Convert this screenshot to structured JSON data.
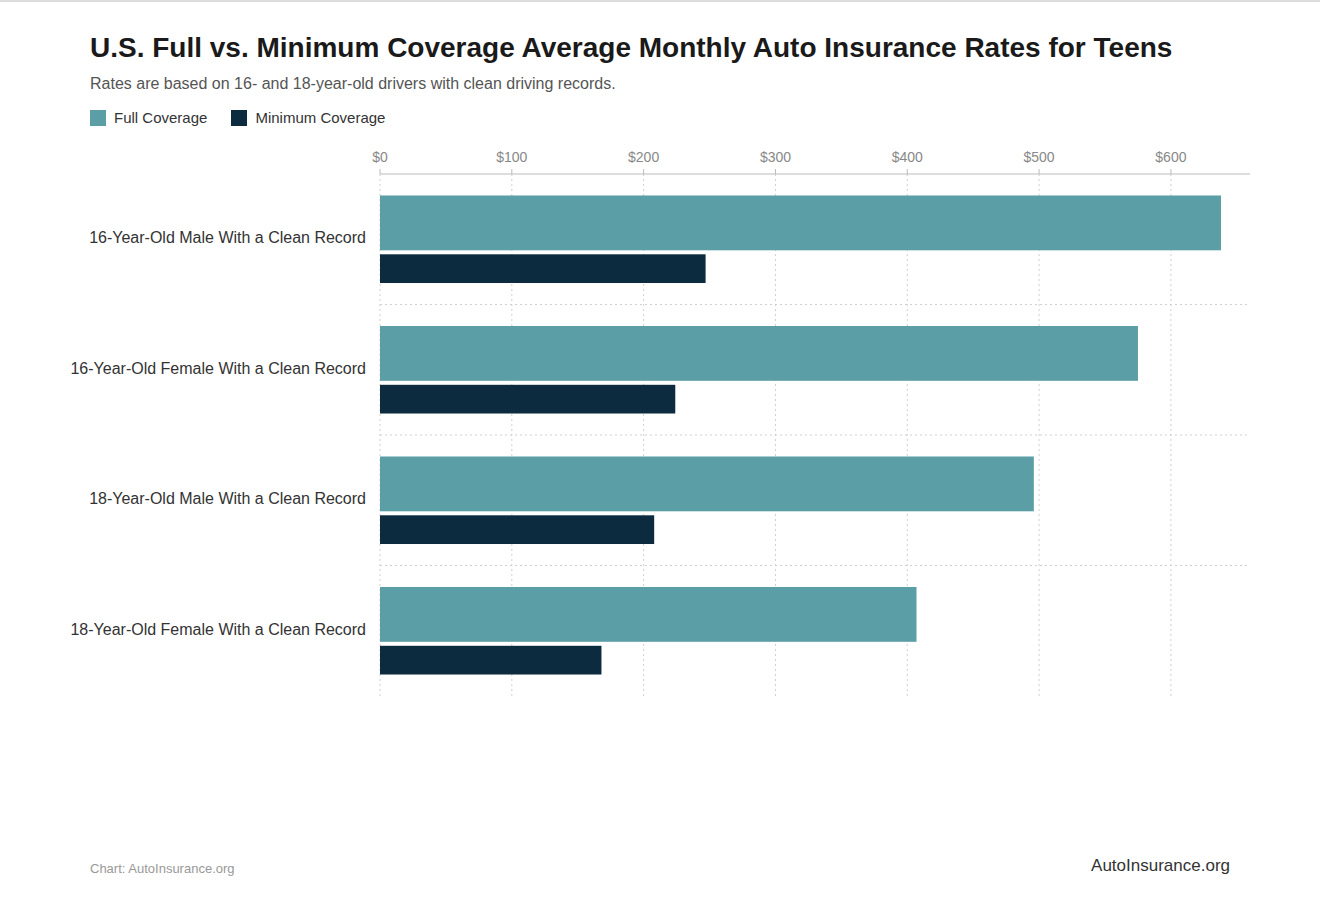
{
  "chart_data": {
    "type": "bar",
    "orientation": "horizontal",
    "title": "U.S. Full vs. Minimum Coverage Average Monthly Auto Insurance Rates for Teens",
    "subtitle": "Rates are based on 16- and 18-year-old drivers with clean driving records.",
    "categories": [
      "16-Year-Old Male With a Clean Record",
      "16-Year-Old Female With a Clean Record",
      "18-Year-Old Male With a Clean Record",
      "18-Year-Old Female With a Clean Record"
    ],
    "series": [
      {
        "name": "Full Coverage",
        "color": "#5B9EA6",
        "values": [
          638,
          575,
          496,
          407
        ]
      },
      {
        "name": "Minimum Coverage",
        "color": "#0D2B3E",
        "values": [
          247,
          224,
          208,
          168
        ]
      }
    ],
    "xlim": [
      0,
      660
    ],
    "xticks": [
      {
        "value": 0,
        "label": "$0"
      },
      {
        "value": 100,
        "label": "$100"
      },
      {
        "value": 200,
        "label": "$200"
      },
      {
        "value": 300,
        "label": "$300"
      },
      {
        "value": 400,
        "label": "$400"
      },
      {
        "value": 500,
        "label": "$500"
      },
      {
        "value": 600,
        "label": "$600"
      }
    ],
    "grid": true,
    "legend": "top-left",
    "annotations": [
      "Chart: AutoInsurance.org",
      "AutoInsurance.org"
    ]
  }
}
